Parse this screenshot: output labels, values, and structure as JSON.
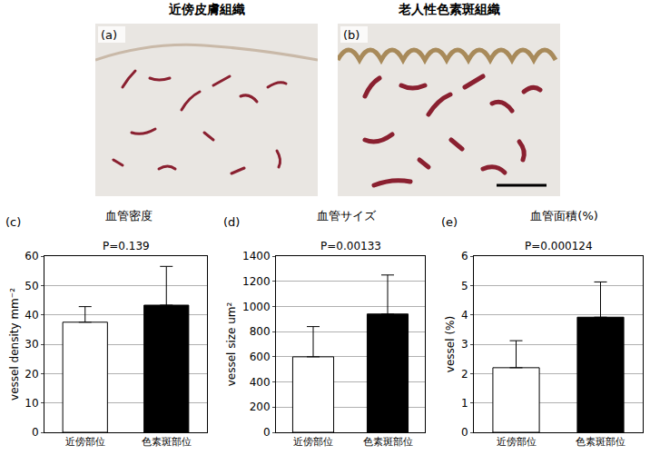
{
  "panels": [
    {
      "letter": "(a)",
      "title": "近傍皮膚組織"
    },
    {
      "letter": "(b)",
      "title": "老人性色素斑組織"
    }
  ],
  "chart_data": [
    {
      "type": "bar",
      "letter": "(c)",
      "title": "血管密度",
      "y_label": "vessel density mm⁻²",
      "categories": [
        "近傍部位",
        "色素斑部位"
      ],
      "values": [
        37.5,
        43.3
      ],
      "error": [
        5.3,
        13.2
      ],
      "colors": [
        "#ffffff",
        "#000000"
      ],
      "ylim": [
        0,
        60
      ],
      "yticks": [
        0,
        10,
        20,
        30,
        40,
        50,
        60
      ],
      "grid": true,
      "annotation": "P=0.139"
    },
    {
      "type": "bar",
      "letter": "(d)",
      "title": "血管サイズ",
      "y_label": "vessel size um²",
      "categories": [
        "近傍部位",
        "色素斑部位"
      ],
      "values": [
        600,
        940
      ],
      "error": [
        240,
        310
      ],
      "colors": [
        "#ffffff",
        "#000000"
      ],
      "ylim": [
        0,
        1400
      ],
      "yticks": [
        0,
        200,
        400,
        600,
        800,
        1000,
        1200,
        1400
      ],
      "grid": true,
      "annotation": "P=0.00133"
    },
    {
      "type": "bar",
      "letter": "(e)",
      "title": "血管面積(%)",
      "y_label": "vessel (%)",
      "categories": [
        "近傍部位",
        "色素斑部位"
      ],
      "values": [
        2.2,
        3.92
      ],
      "error": [
        0.92,
        1.2
      ],
      "colors": [
        "#ffffff",
        "#000000"
      ],
      "ylim": [
        0,
        6
      ],
      "yticks": [
        0,
        1,
        2,
        3,
        4,
        5,
        6
      ],
      "grid": true,
      "annotation": "P=0.000124"
    }
  ]
}
